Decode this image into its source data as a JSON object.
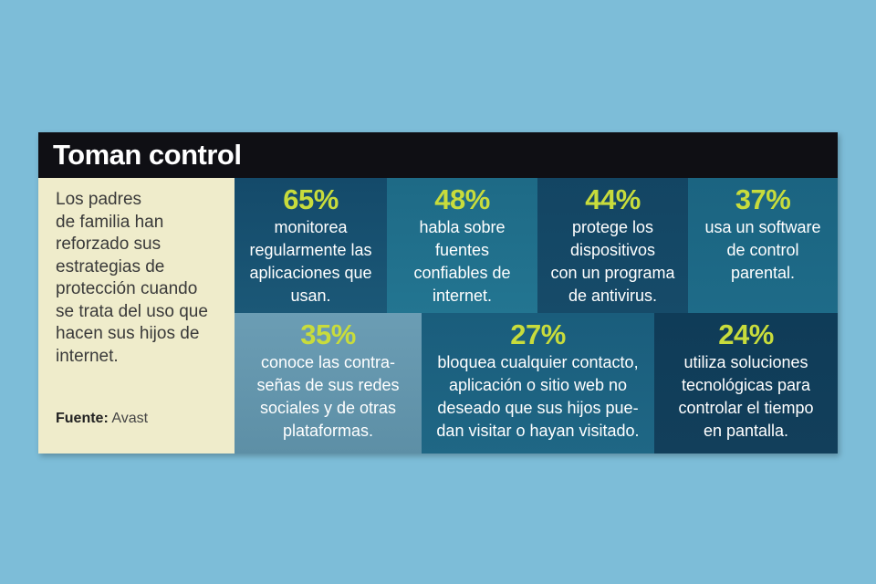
{
  "title": "Toman control",
  "intro_lines": [
    "Los padres",
    "de familia han",
    "reforzado sus",
    "estrategias de",
    "protección cuando",
    "se trata del uso que",
    "hacen sus hijos de",
    "internet."
  ],
  "source": {
    "label": "Fuente:",
    "value": "Avast"
  },
  "stats": [
    {
      "percent": "65%",
      "lines": [
        "monitorea",
        "regularmente las",
        "aplicaciones que",
        "usan."
      ]
    },
    {
      "percent": "48%",
      "lines": [
        "habla sobre",
        "fuentes",
        "confiables de",
        "internet."
      ]
    },
    {
      "percent": "44%",
      "lines": [
        "protege los",
        "dispositivos",
        "con un programa",
        "de antivirus."
      ]
    },
    {
      "percent": "37%",
      "lines": [
        "usa un software",
        "de control",
        "parental."
      ]
    },
    {
      "percent": "35%",
      "lines": [
        "conoce las contra-",
        "señas de sus redes",
        "sociales y de otras",
        "plataformas."
      ]
    },
    {
      "percent": "27%",
      "lines": [
        "bloquea cualquier contacto,",
        "aplicación o sitio web no",
        "deseado que sus hijos pue-",
        "dan visitar o hayan visitado."
      ]
    },
    {
      "percent": "24%",
      "lines": [
        "utiliza soluciones",
        "tecnológicas para",
        "controlar el tiempo",
        "en pantalla."
      ]
    }
  ],
  "colors": {
    "background": "#7dbdd8",
    "header": "#0f0f14",
    "sidebar": "#efeccb",
    "percent_accent": "#c8dc3c"
  }
}
